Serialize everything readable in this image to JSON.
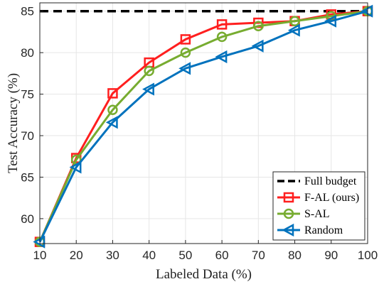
{
  "chart_data": {
    "type": "line",
    "xlabel": "Labeled Data (%)",
    "ylabel": "Test Accuracy (%)",
    "x": [
      10,
      20,
      30,
      40,
      50,
      60,
      70,
      80,
      90,
      100
    ],
    "xlim": [
      10,
      100
    ],
    "ylim": [
      57,
      86
    ],
    "x_ticks": [
      10,
      20,
      30,
      40,
      50,
      60,
      70,
      80,
      90,
      100
    ],
    "y_ticks": [
      60,
      65,
      70,
      75,
      80,
      85
    ],
    "grid": true,
    "legend_position": "bottom-right",
    "series": [
      {
        "name": "Full budget",
        "style": "dashed",
        "color": "#000000",
        "marker": "none",
        "values": [
          85,
          85,
          85,
          85,
          85,
          85,
          85,
          85,
          85,
          85
        ]
      },
      {
        "name": "F-AL (ours)",
        "style": "solid",
        "color": "#ff1f1f",
        "marker": "square",
        "values": [
          57.2,
          67.3,
          75.1,
          78.8,
          81.6,
          83.4,
          83.6,
          83.8,
          84.6,
          85.0
        ]
      },
      {
        "name": "S-AL",
        "style": "solid",
        "color": "#77ac30",
        "marker": "circle",
        "values": [
          57.2,
          67.1,
          73.1,
          77.8,
          80.0,
          81.9,
          83.2,
          83.8,
          84.4,
          85.0
        ]
      },
      {
        "name": "Random",
        "style": "solid",
        "color": "#0072bd",
        "marker": "triangle-left",
        "values": [
          57.2,
          66.2,
          71.6,
          75.6,
          78.1,
          79.5,
          80.8,
          82.7,
          83.8,
          85.0
        ]
      }
    ]
  }
}
